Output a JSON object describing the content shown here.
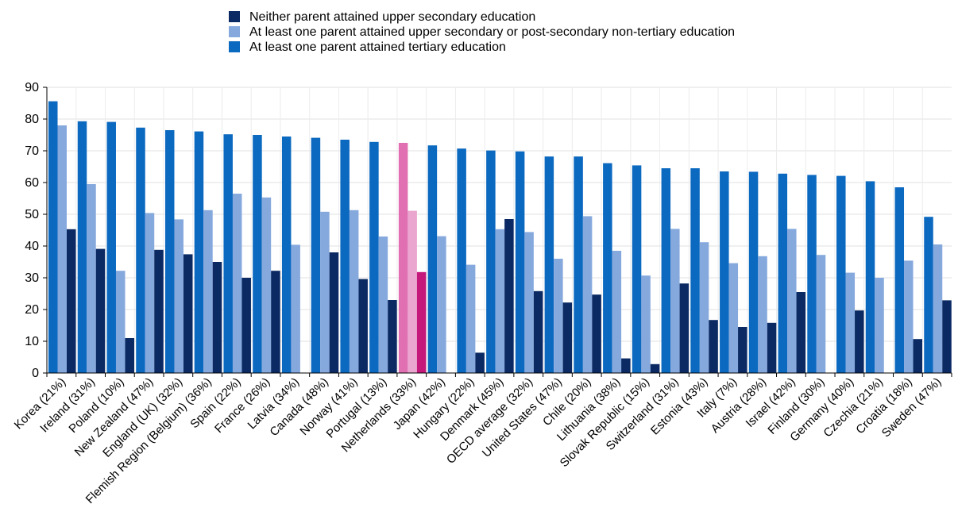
{
  "chart_data": {
    "type": "bar",
    "title": "",
    "xlabel": "",
    "ylabel": "",
    "ylim": [
      0,
      90
    ],
    "yticks": [
      0,
      10,
      20,
      30,
      40,
      50,
      60,
      70,
      80,
      90
    ],
    "grid": true,
    "legend_position": "top",
    "highlight_category": "Netherlands (33%)",
    "categories": [
      "Korea (21%)",
      "Ireland (31%)",
      "Poland (10%)",
      "New Zealand (47%)",
      "England (UK) (32%)",
      "Flemish Region (Belgium) (36%)",
      "Spain (22%)",
      "France (26%)",
      "Latvia (34%)",
      "Canada (48%)",
      "Norway (41%)",
      "Portugal (13%)",
      "Netherlands (33%)",
      "Japan (42%)",
      "Hungary (22%)",
      "Denmark (45%)",
      "OECD average (32%)",
      "United States (47%)",
      "Chile (20%)",
      "Lithuania (38%)",
      "Slovak Republic (15%)",
      "Switzerland (31%)",
      "Estonia (43%)",
      "Italy (7%)",
      "Austria (28%)",
      "Israel (42%)",
      "Finland (30%)",
      "Germany (40%)",
      "Czechia (21%)",
      "Croatia (18%)",
      "Sweden (47%)"
    ],
    "series": [
      {
        "name": "Neither parent attained upper secondary education",
        "color": "#0b2a64",
        "highlight_color": "#c4187b",
        "values": [
          45.3,
          39.1,
          11.0,
          38.8,
          37.4,
          35.0,
          30.0,
          32.2,
          null,
          38.0,
          29.6,
          23.0,
          31.8,
          null,
          6.4,
          48.5,
          25.8,
          22.2,
          24.7,
          4.6,
          2.8,
          28.2,
          16.7,
          14.5,
          15.8,
          25.5,
          null,
          19.7,
          null,
          10.7,
          22.9
        ]
      },
      {
        "name": "At least one parent attained upper secondary or post-secondary non-tertiary education",
        "color": "#86a9dd",
        "highlight_color": "#eba6cf",
        "values": [
          78.0,
          59.5,
          32.2,
          50.4,
          48.4,
          51.3,
          56.5,
          55.3,
          40.4,
          50.8,
          51.3,
          43.0,
          51.1,
          43.1,
          34.1,
          45.3,
          44.4,
          36.0,
          49.4,
          38.5,
          30.7,
          45.4,
          41.2,
          34.6,
          36.8,
          45.4,
          37.2,
          31.6,
          30.0,
          35.4,
          40.5
        ]
      },
      {
        "name": "At least one parent attained tertiary education",
        "color": "#0c69c0",
        "highlight_color": "#e170b2",
        "values": [
          85.6,
          79.3,
          79.1,
          77.3,
          76.5,
          76.1,
          75.2,
          75.0,
          74.5,
          74.1,
          73.5,
          72.8,
          72.5,
          71.7,
          70.7,
          70.1,
          69.8,
          68.2,
          68.2,
          66.1,
          65.4,
          64.5,
          64.5,
          63.5,
          63.4,
          62.8,
          62.4,
          62.1,
          60.4,
          58.5,
          49.2
        ]
      }
    ]
  }
}
